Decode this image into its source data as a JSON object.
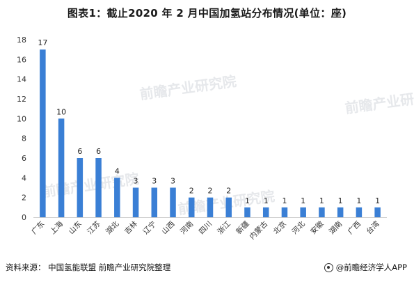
{
  "title": "图表1：截止2020 年 2 月中国加氢站分布情况(单位：座)",
  "source": "资料来源： 中国氢能联盟 前瞻产业研究院整理",
  "brand": "@前瞻经济学人APP",
  "watermark": "前瞻产业研究院",
  "colors": {
    "bar": "#3a7fd5",
    "axis": "#cccccc",
    "grid": "#ffffff",
    "text": "#333333"
  },
  "chart_data": {
    "type": "bar",
    "title": "图表1：截止2020 年 2 月中国加氢站分布情况(单位：座)",
    "xlabel": "",
    "ylabel": "",
    "ylim": [
      0,
      18
    ],
    "yticks": [
      0,
      2,
      4,
      6,
      8,
      10,
      12,
      14,
      16,
      18
    ],
    "grid": false,
    "legend": "none",
    "categories": [
      "广东",
      "上海",
      "山东",
      "江苏",
      "湖北",
      "吉林",
      "辽宁",
      "山西",
      "河南",
      "四川",
      "浙江",
      "新疆",
      "内蒙古",
      "北京",
      "河北",
      "安徽",
      "湖南",
      "广西",
      "台湾"
    ],
    "values": [
      17,
      10,
      6,
      6,
      4,
      3,
      3,
      3,
      2,
      2,
      2,
      1,
      1,
      1,
      1,
      1,
      1,
      1,
      1
    ]
  }
}
